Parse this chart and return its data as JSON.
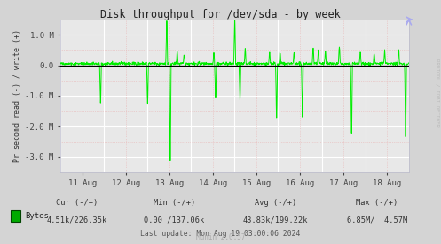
{
  "title": "Disk throughput for /dev/sda - by week",
  "ylabel": "Pr second read (-) / write (+)",
  "xlabel_dates": [
    "11 Aug",
    "12 Aug",
    "13 Aug",
    "14 Aug",
    "15 Aug",
    "16 Aug",
    "17 Aug",
    "18 Aug"
  ],
  "bg_color": "#d4d4d4",
  "plot_bg_color": "#e8e8e8",
  "grid_major_color": "#ffffff",
  "grid_minor_color": "#e8b4b4",
  "line_color": "#00ee00",
  "zero_line_color": "#000000",
  "rrdtool_text": "RRDTOOL / TOBI OETIKER",
  "legend_color": "#00aa00",
  "legend_border": "#004400",
  "legend_label": "Bytes",
  "ylim": [
    -3500000,
    1500000
  ],
  "yticks": [
    -3000000,
    -2000000,
    -1000000,
    0,
    1000000
  ],
  "ytick_labels": [
    "-3.0 M",
    "-2.0 M",
    "-1.0 M",
    "0.0",
    "1.0 M"
  ],
  "footer_cur": "Cur (-/+)",
  "footer_cur_val": "4.51k/226.35k",
  "footer_min": "Min (-/+)",
  "footer_min_val": "0.00 /137.06k",
  "footer_avg": "Avg (-/+)",
  "footer_avg_val": "43.83k/199.22k",
  "footer_max": "Max (-/+)",
  "footer_max_val": "6.85M/  4.57M",
  "footer_update": "Last update: Mon Aug 19 03:00:06 2024",
  "munin_version": "Munin 2.0.57",
  "n_points": 1200,
  "arrow_color": "#aaaaee"
}
